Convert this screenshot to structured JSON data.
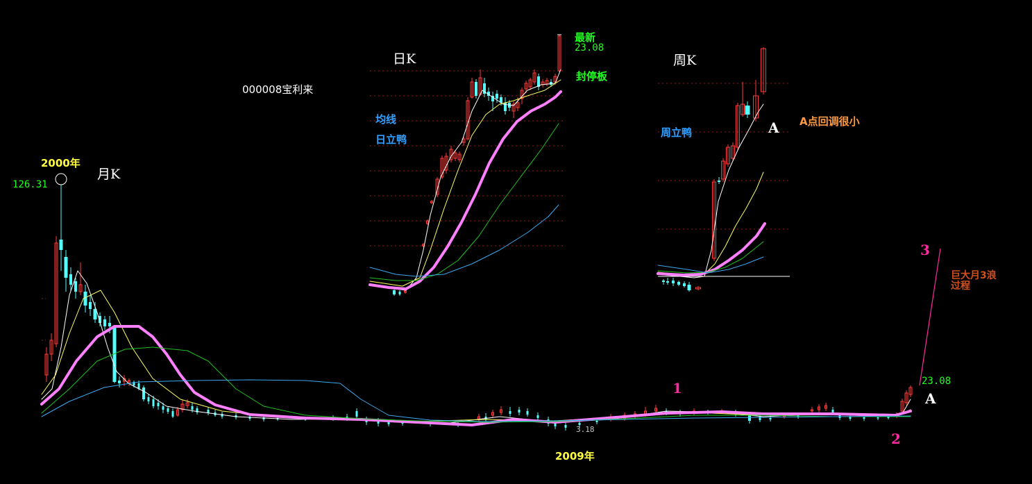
{
  "labels": {
    "stock": "000008宝利来",
    "daily_title": "日K",
    "weekly_title": "周K",
    "monthly_title": "月K",
    "latest_word": "最新",
    "latest_value": "23.08",
    "limit_up": "封停板",
    "ma_word": "均线",
    "daily_duck": "日立鸭",
    "weekly_duck": "周立鸭",
    "a_small": "A点回调很小",
    "year_2000": "2000年",
    "high_value": "126.31",
    "year_2009": "2009年",
    "low_value": "3.18",
    "right_value": "23.08",
    "point_a": "A",
    "wave_1": "1",
    "wave_2": "2",
    "wave_3": "3",
    "wave_note_1": "巨大月3浪",
    "wave_note_2": "过程"
  },
  "colors": {
    "background": "#000000",
    "up_candle": "#ff3c3c",
    "down_candle": "#54fcfc",
    "ma_pink": "#ff80ff",
    "ma_white": "#ffffff",
    "ma_yellow": "#ffff60",
    "ma_green": "#20c020",
    "ma_blue": "#3ba8f0",
    "label_green": "#20ff20",
    "label_yellow": "#ffff40",
    "label_blue": "#30a0ff",
    "label_orange": "#ff9a40",
    "label_magenta": "#ff2aa0",
    "label_brown": "#d0501e"
  },
  "chart_data": [
    {
      "type": "candlestick",
      "name_text": "月K",
      "x_range": [
        "2000",
        "2009+"
      ],
      "annotations": [
        "2000年",
        "126.31",
        "2009年",
        "3.18",
        "23.08",
        "A",
        "1",
        "2",
        "3",
        "巨大月3浪",
        "过程"
      ],
      "moving_averages": [
        "white",
        "yellow",
        "pink",
        "green",
        "blue"
      ]
    },
    {
      "type": "candlestick",
      "name_text": "日K",
      "latest": 23.08,
      "annotations": [
        "最新",
        "23.08",
        "封停板",
        "均线",
        "日立鸭"
      ],
      "moving_averages": [
        "white",
        "yellow",
        "pink",
        "green",
        "blue"
      ]
    },
    {
      "type": "candlestick",
      "name_text": "周K",
      "annotations": [
        "周立鸭",
        "A",
        "A点回调很小"
      ],
      "moving_averages": [
        "white",
        "yellow",
        "pink",
        "green",
        "blue"
      ]
    }
  ]
}
